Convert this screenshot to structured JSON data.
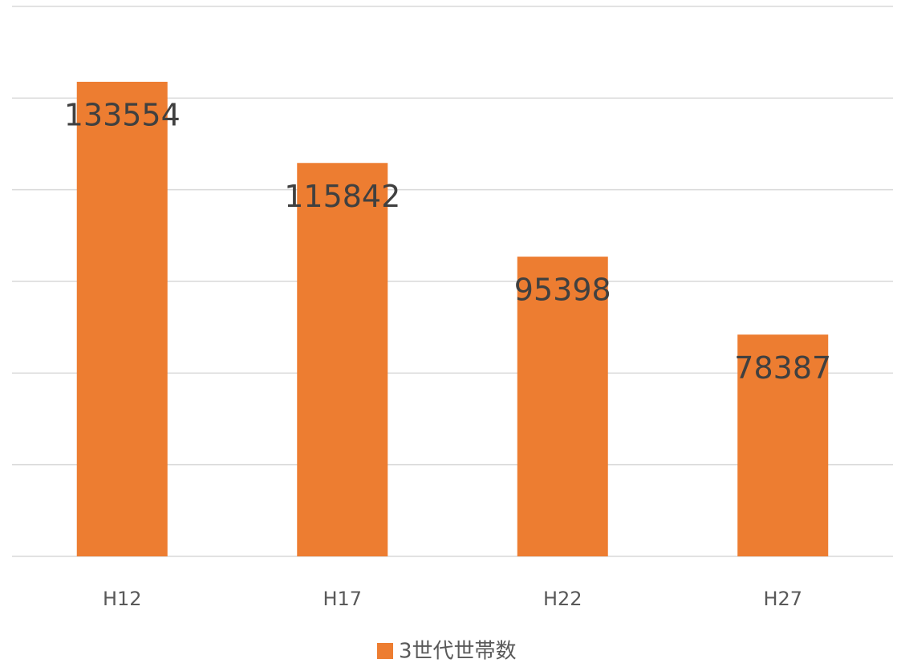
{
  "chart_data": {
    "type": "bar",
    "categories": [
      "H12",
      "H17",
      "H22",
      "H27"
    ],
    "series": [
      {
        "name": "3世代世帯数",
        "color": "#ed7d31",
        "values": [
          133554,
          115842,
          95398,
          78387
        ]
      }
    ],
    "ylim": [
      30000,
      150000
    ],
    "yticks": [
      30000,
      50000,
      70000,
      90000,
      110000,
      130000,
      150000
    ],
    "grid": true,
    "legend": "bottom"
  }
}
